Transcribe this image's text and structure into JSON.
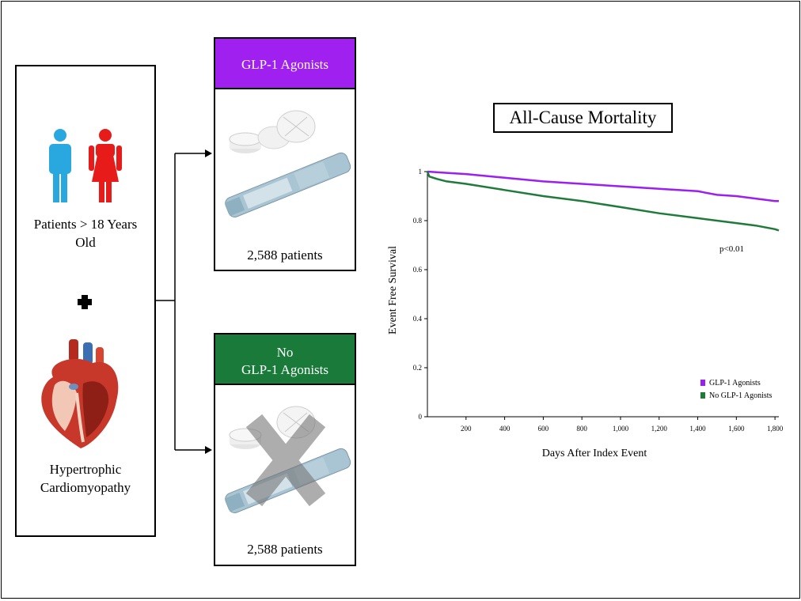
{
  "left_panel": {
    "patients_label_line1": "Patients > 18 Years",
    "patients_label_line2": "Old",
    "condition_line1": "Hypertrophic",
    "condition_line2": "Cardiomyopathy"
  },
  "groups": [
    {
      "header": "GLP-1 Agonists",
      "count": "2,588 patients",
      "color": "#a020f0"
    },
    {
      "header_line1": "No",
      "header_line2": "GLP-1 Agonists",
      "count": "2,588 patients",
      "color": "#1a7a3a"
    }
  ],
  "colors": {
    "male_icon": "#29a8e0",
    "female_icon": "#e81b1b",
    "glp_header": "#a020f0",
    "no_glp_header": "#1a7a3a"
  },
  "chart_data": {
    "type": "line",
    "title": "All-Cause Mortality",
    "xlabel": "Days After Index Event",
    "ylabel": "Event Free Survival",
    "xlim": [
      0,
      1820
    ],
    "ylim": [
      0,
      1
    ],
    "x_ticks": [
      200,
      400,
      600,
      800,
      1000,
      1200,
      1400,
      1600,
      1800
    ],
    "x_tick_labels": [
      "200",
      "400",
      "600",
      "800",
      "1,000",
      "1,200",
      "1,400",
      "1,600",
      "1,800"
    ],
    "y_ticks": [
      0,
      0.2,
      0.4,
      0.6,
      0.8,
      1
    ],
    "y_tick_labels": [
      "0",
      "0.2",
      "0.4",
      "0.6",
      "0.8",
      "1"
    ],
    "annotation": "p<0.01",
    "legend_position": "bottom-right",
    "series": [
      {
        "name": "GLP-1 Agonists",
        "color": "#9b1ff2",
        "x": [
          0,
          100,
          200,
          400,
          600,
          800,
          1000,
          1200,
          1400,
          1500,
          1600,
          1700,
          1800,
          1820
        ],
        "y": [
          1.0,
          0.995,
          0.99,
          0.975,
          0.96,
          0.95,
          0.94,
          0.93,
          0.92,
          0.905,
          0.9,
          0.89,
          0.88,
          0.88
        ]
      },
      {
        "name": "No GLP-1 Agonists",
        "color": "#1e7b3a",
        "x": [
          0,
          10,
          50,
          100,
          200,
          400,
          600,
          800,
          1000,
          1200,
          1400,
          1600,
          1700,
          1800,
          1820
        ],
        "y": [
          1.0,
          0.98,
          0.97,
          0.96,
          0.95,
          0.925,
          0.9,
          0.88,
          0.855,
          0.83,
          0.81,
          0.79,
          0.78,
          0.765,
          0.76
        ]
      }
    ]
  }
}
